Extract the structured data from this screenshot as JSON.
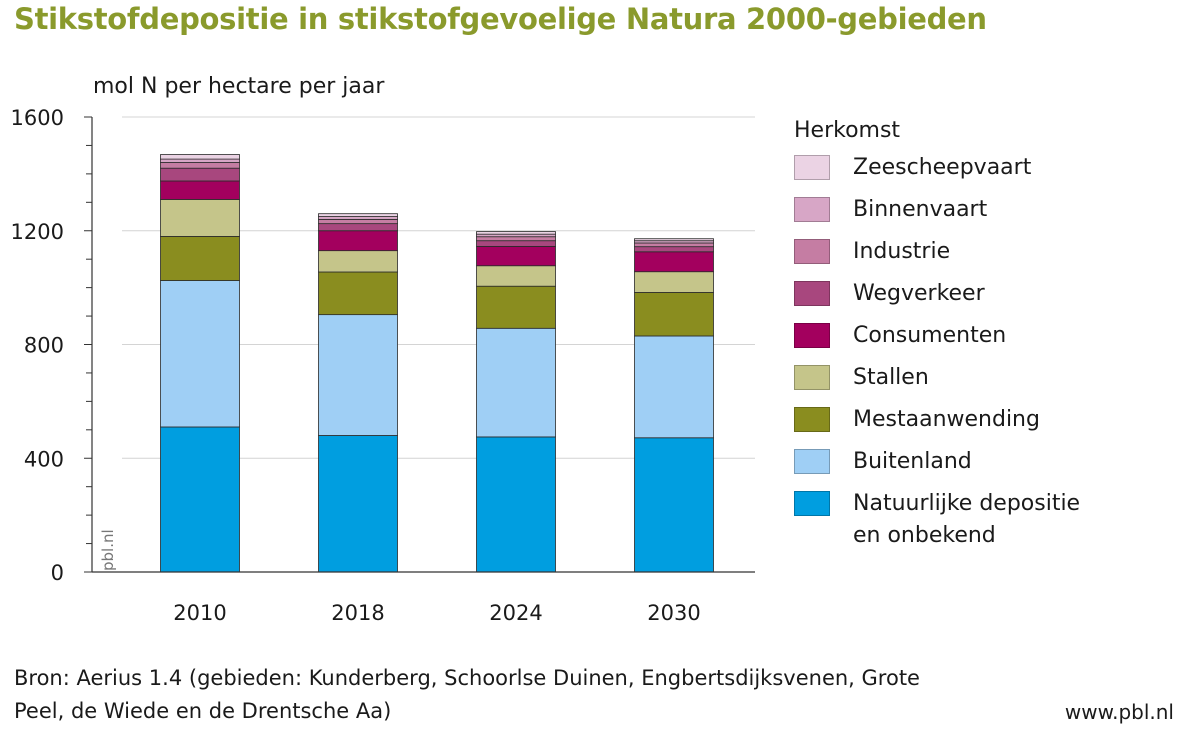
{
  "title": "Stikstofdepositie in stikstofgevoelige Natura 2000-gebieden",
  "chart_data": {
    "type": "bar",
    "stacked": true,
    "ylabel": "mol N per hectare per jaar",
    "ylim": [
      0,
      1600
    ],
    "yticks": [
      "0",
      "400",
      "800",
      "1200",
      "1600"
    ],
    "categories": [
      "2010",
      "2018",
      "2024",
      "2030"
    ],
    "legend_title": "Herkomst",
    "legend_position": "right",
    "watermark": "pbl.nl",
    "series": [
      {
        "name": "Natuurlijke depositie en onbekend",
        "color": "#009ee0",
        "values": [
          510,
          480,
          475,
          472
        ]
      },
      {
        "name": "Buitenland",
        "color": "#9fcff5",
        "values": [
          515,
          425,
          382,
          358
        ]
      },
      {
        "name": "Mestaanwending",
        "color": "#8a8d1f",
        "values": [
          155,
          150,
          148,
          153
        ]
      },
      {
        "name": "Stallen",
        "color": "#c5c58a",
        "values": [
          130,
          75,
          72,
          73
        ]
      },
      {
        "name": "Consumenten",
        "color": "#a3005e",
        "values": [
          65,
          70,
          68,
          70
        ]
      },
      {
        "name": "Wegverkeer",
        "color": "#a8477e",
        "values": [
          45,
          25,
          20,
          18
        ]
      },
      {
        "name": "Industrie",
        "color": "#c57da3",
        "values": [
          20,
          15,
          14,
          13
        ]
      },
      {
        "name": "Binnenvaart",
        "color": "#d7a6c6",
        "values": [
          12,
          10,
          9,
          8
        ]
      },
      {
        "name": "Zeescheepvaart",
        "color": "#ebd3e4",
        "values": [
          16,
          10,
          9,
          7
        ]
      }
    ]
  },
  "source": "Bron: Aerius 1.4 (gebieden: Kunderberg, Schoorlse Duinen, Engbertsdijksvenen, Grote Peel, de Wiede en de Drentsche Aa)",
  "site": "www.pbl.nl"
}
